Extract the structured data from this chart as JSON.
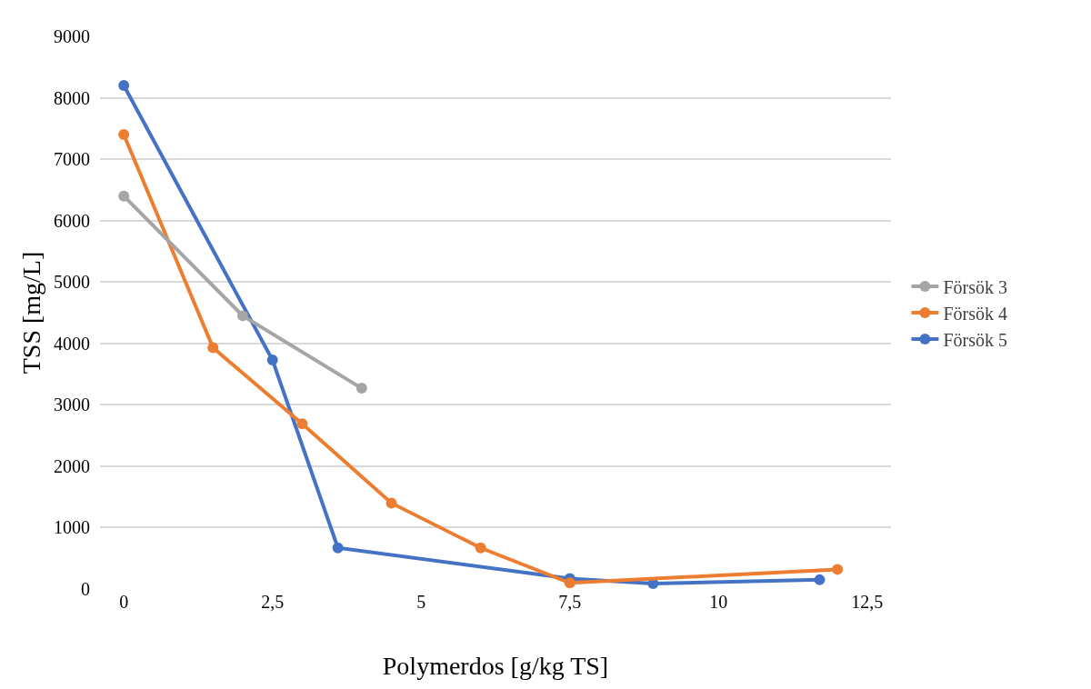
{
  "chart_data": {
    "type": "line",
    "xlabel": "Polymerdos [g/kg TS]",
    "ylabel": "TSS [mg/L]",
    "xlim": [
      -0.4,
      12.9
    ],
    "xticks": [
      0,
      {
        "value": 2.5,
        "label": "2,5"
      },
      5,
      {
        "value": 7.5,
        "label": "7,5"
      },
      10,
      {
        "value": 12.5,
        "label": "12,5"
      }
    ],
    "ylim": [
      0,
      9000
    ],
    "yticks": [
      0,
      1000,
      2000,
      3000,
      4000,
      5000,
      6000,
      7000,
      8000,
      9000
    ],
    "grid": "y",
    "legend": "right",
    "marker": "circle",
    "line_style": "solid",
    "series": [
      {
        "name": "Försök 3",
        "color": "#a5a5a5",
        "x": [
          0,
          2,
          4
        ],
        "values": [
          6400,
          4450,
          3270
        ]
      },
      {
        "name": "Försök 4",
        "color": "#ed7d31",
        "x": [
          0,
          1.5,
          3,
          4.5,
          6,
          7.5,
          12
        ],
        "values": [
          7400,
          3930,
          2690,
          1400,
          670,
          100,
          320
        ]
      },
      {
        "name": "Försök 5",
        "color": "#4472c4",
        "x": [
          0,
          2.5,
          3.6,
          7.5,
          8.9,
          11.7
        ],
        "values": [
          8200,
          3730,
          670,
          170,
          90,
          150
        ]
      }
    ]
  }
}
